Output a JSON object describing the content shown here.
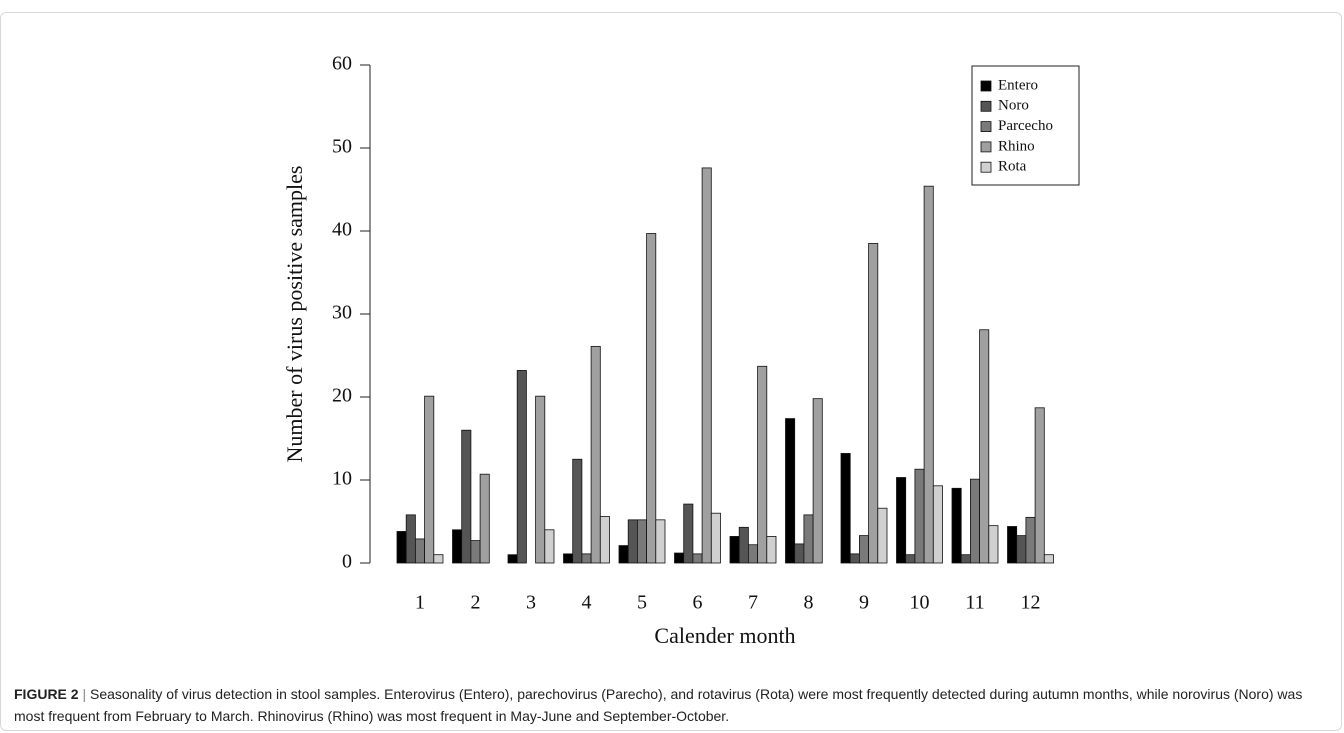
{
  "chart_data": {
    "type": "bar",
    "x_label": "Calender month",
    "y_label": "Number of virus positive samples",
    "categories": [
      "1",
      "2",
      "3",
      "4",
      "5",
      "6",
      "7",
      "8",
      "9",
      "10",
      "11",
      "12"
    ],
    "series": [
      {
        "name": "Entero",
        "color": "#000000",
        "values": [
          3.8,
          4.0,
          1.0,
          1.1,
          2.1,
          1.2,
          3.2,
          17.4,
          13.2,
          10.3,
          9.0,
          4.4
        ]
      },
      {
        "name": "Noro",
        "color": "#555555",
        "values": [
          5.8,
          16.0,
          23.2,
          12.5,
          5.2,
          7.1,
          4.3,
          2.3,
          1.1,
          1.0,
          1.0,
          3.3
        ]
      },
      {
        "name": "Parcecho",
        "color": "#7a7a7a",
        "values": [
          2.9,
          2.7,
          0,
          1.1,
          5.2,
          1.1,
          2.2,
          5.8,
          3.3,
          11.3,
          10.1,
          5.5
        ]
      },
      {
        "name": "Rhino",
        "color": "#a0a0a0",
        "values": [
          20.1,
          10.7,
          20.1,
          26.1,
          39.7,
          47.6,
          23.7,
          19.8,
          38.5,
          45.4,
          28.1,
          18.7
        ]
      },
      {
        "name": "Rota",
        "color": "#d0d0d0",
        "values": [
          1.0,
          0,
          4.0,
          5.6,
          5.2,
          6.0,
          3.2,
          0,
          6.6,
          9.3,
          4.5,
          1.0
        ]
      }
    ],
    "ylim": [
      0,
      60
    ],
    "yticks": [
      0,
      10,
      20,
      30,
      40,
      50,
      60
    ],
    "legend": "top-right"
  },
  "caption": {
    "label": "FIGURE 2",
    "text": "Seasonality of virus detection in stool samples. Enterovirus (Entero), parechovirus (Parecho), and rotavirus (Rota) were most frequently detected during autumn months, while norovirus (Noro) was most frequent from February to March. Rhinovirus (Rhino) was most frequent in May-June and September-October."
  }
}
